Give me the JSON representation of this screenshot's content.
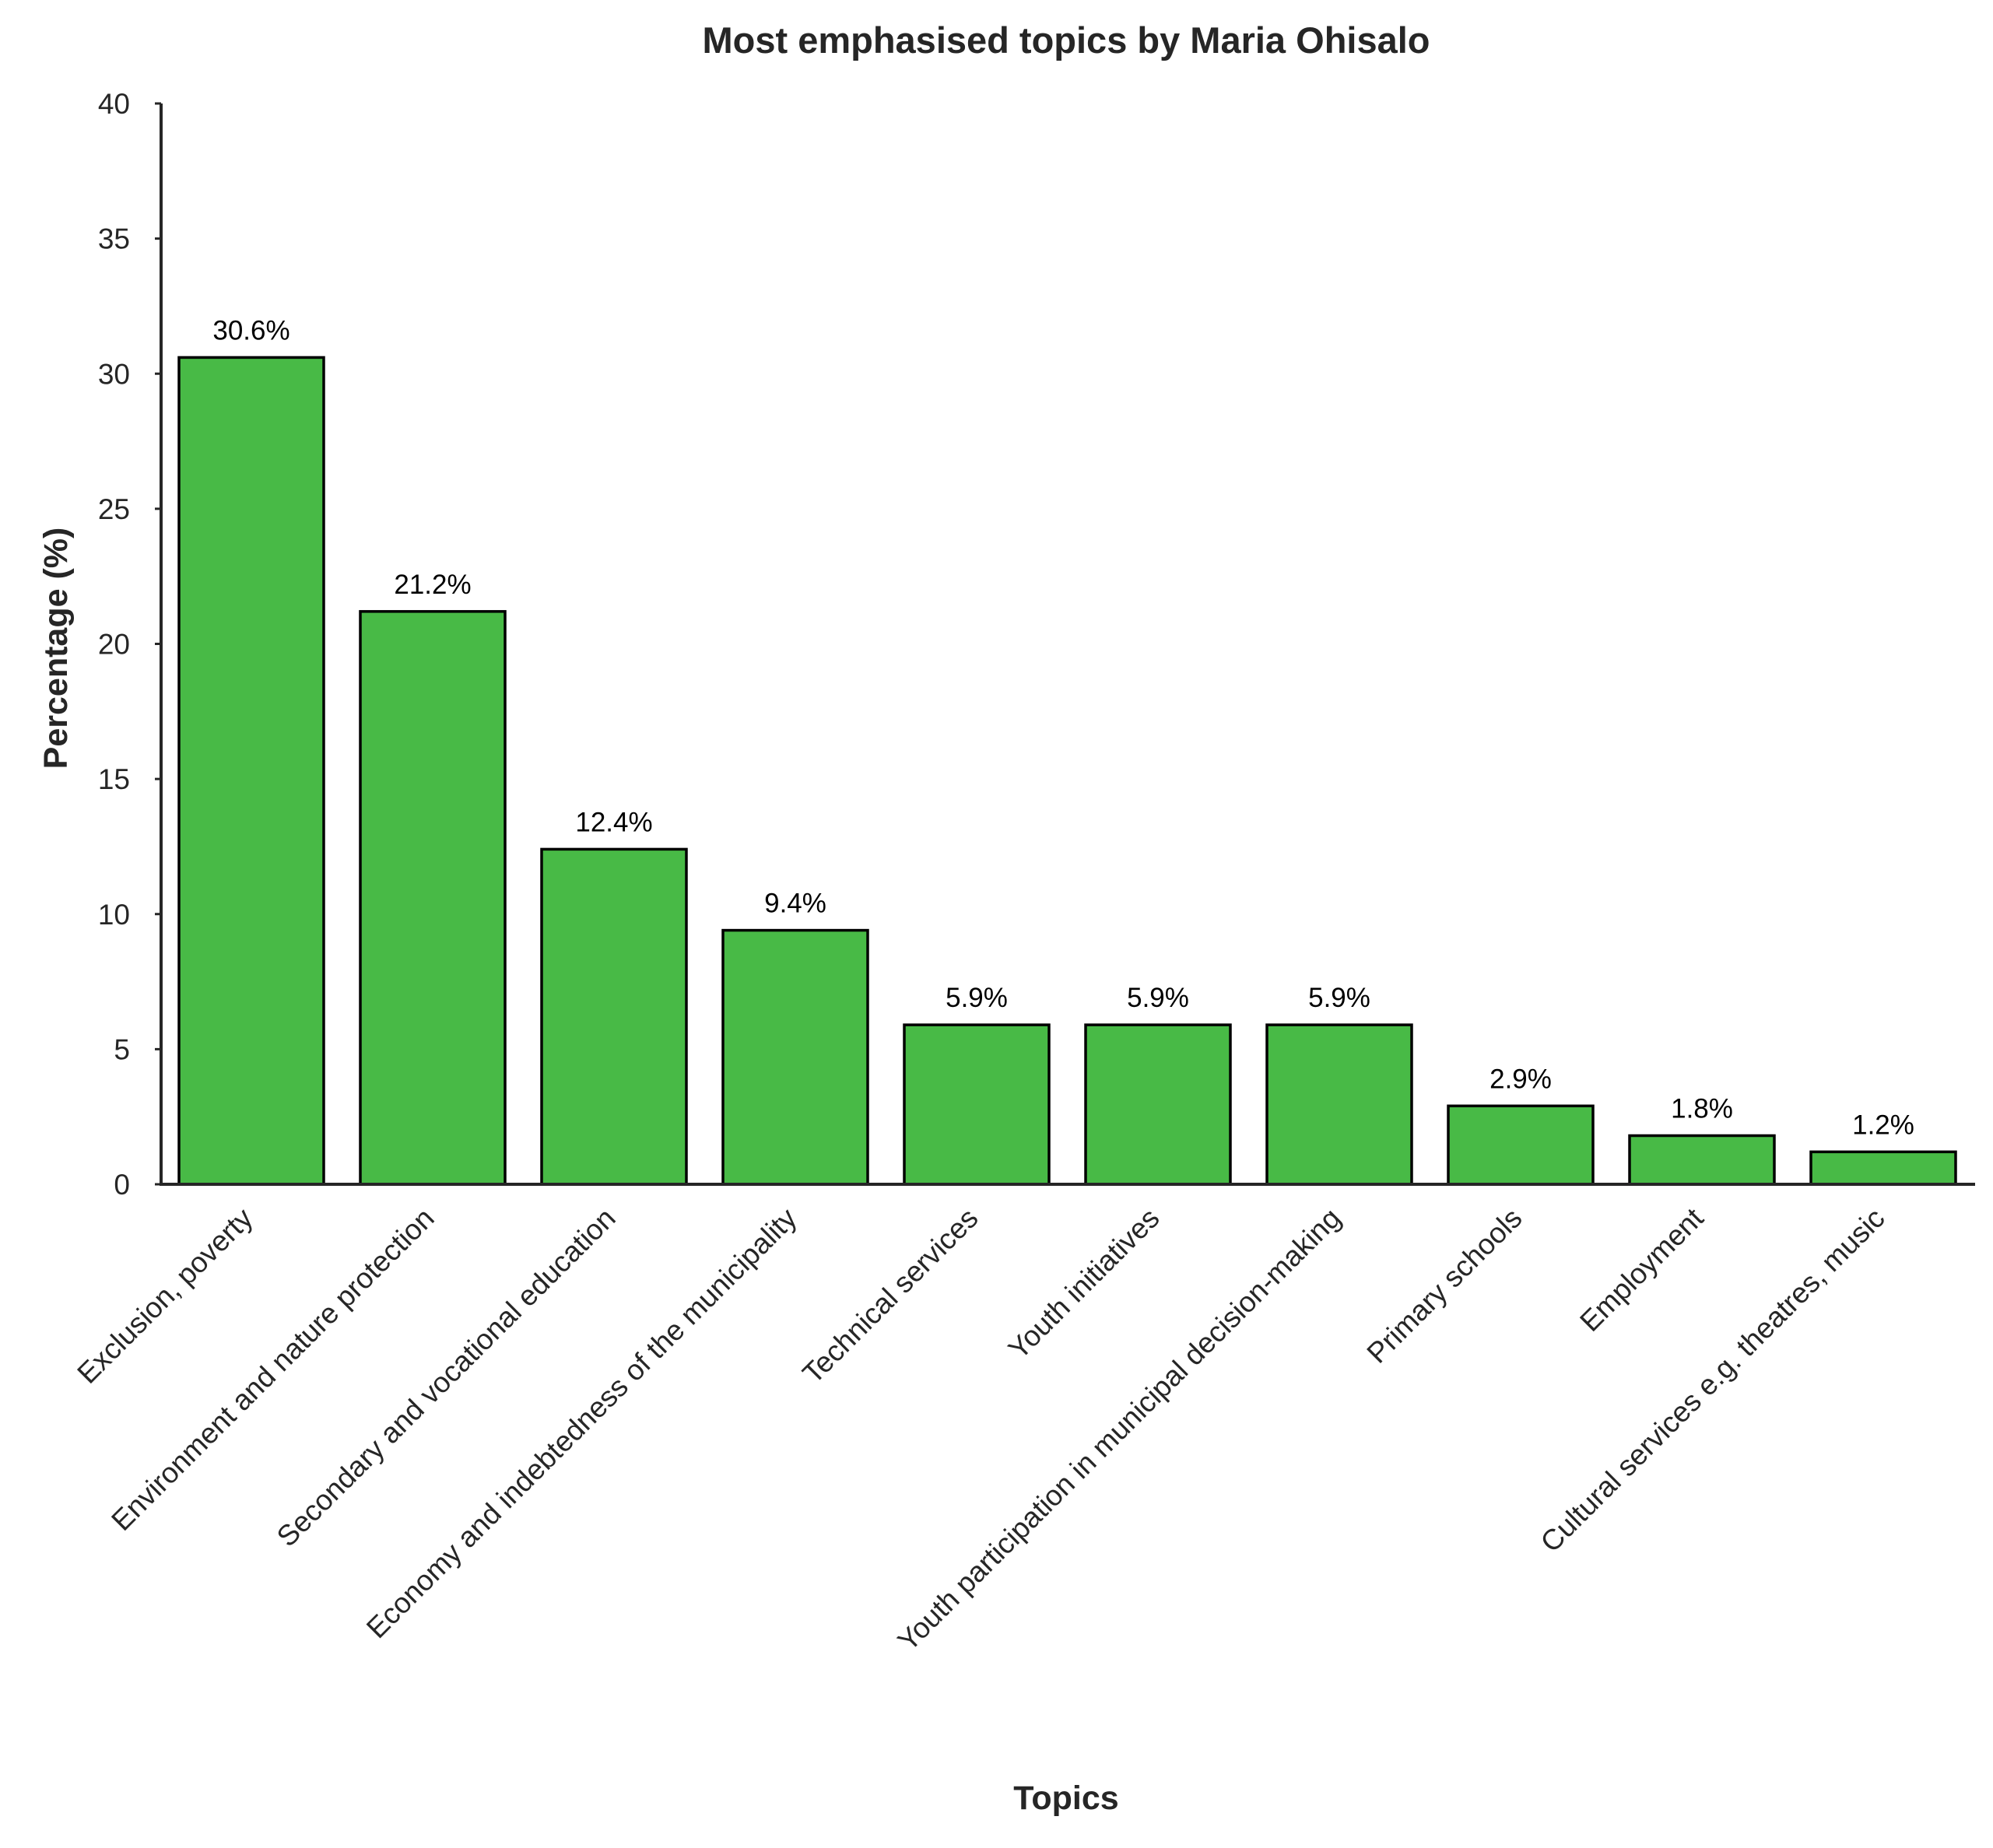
{
  "chart_data": {
    "type": "bar",
    "title": "Most emphasised topics by Maria Ohisalo",
    "xlabel": "Topics",
    "ylabel": "Percentage (%)",
    "ylim": [
      0,
      40
    ],
    "yticks": [
      0,
      5,
      10,
      15,
      20,
      25,
      30,
      35,
      40
    ],
    "grid": false,
    "bar_color": "#48BA46",
    "categories": [
      "Exclusion, poverty",
      "Environment and nature protection",
      "Secondary and vocational education",
      "Economy and indebtedness of the municipality",
      "Technical services",
      "Youth initiatives",
      "Youth participation in municipal decision-making",
      "Primary schools",
      "Employment",
      "Cultural services e.g. theatres, music"
    ],
    "values": [
      30.6,
      21.2,
      12.4,
      9.4,
      5.9,
      5.9,
      5.9,
      2.9,
      1.8,
      1.2
    ],
    "value_labels": [
      "30.6%",
      "21.2%",
      "12.4%",
      "9.4%",
      "5.9%",
      "5.9%",
      "5.9%",
      "2.9%",
      "1.8%",
      "1.2%"
    ]
  }
}
